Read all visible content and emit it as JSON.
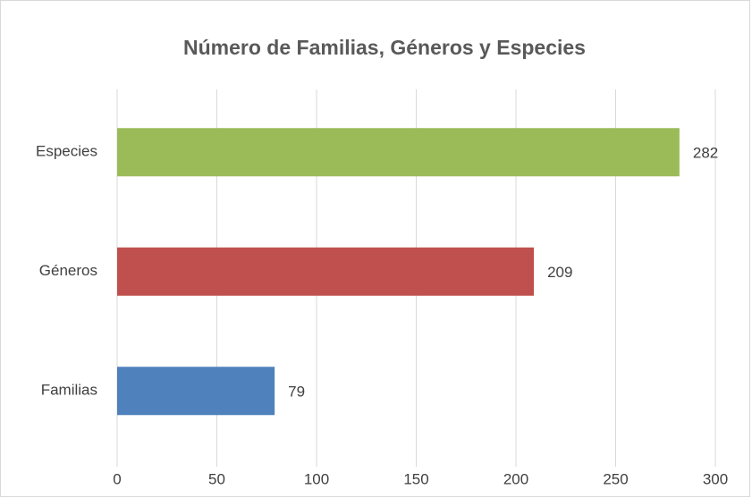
{
  "chart_data": {
    "type": "bar",
    "orientation": "horizontal",
    "title": "Número de Familias, Géneros y Especies",
    "categories": [
      "Familias",
      "Géneros",
      "Especies"
    ],
    "values": [
      79,
      209,
      282
    ],
    "colors": [
      "#4f81bd",
      "#c0504d",
      "#9bbb59"
    ],
    "xlim": [
      0,
      300
    ],
    "xticks": [
      0,
      50,
      100,
      150,
      200,
      250,
      300
    ],
    "grid": true
  }
}
